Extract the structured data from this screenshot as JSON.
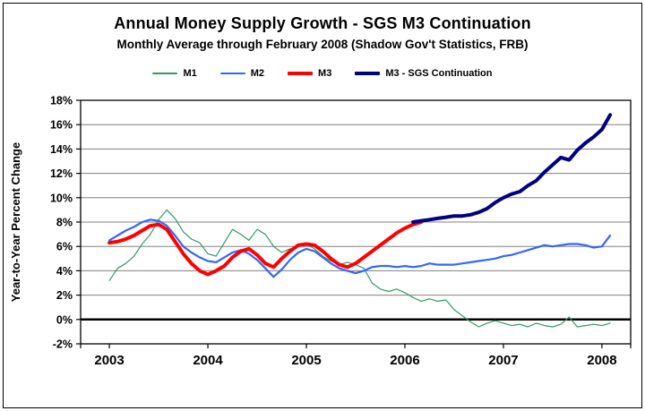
{
  "chart_data": {
    "type": "line",
    "title": "Annual Money Supply Growth - SGS M3 Continuation",
    "subtitle": "Monthly Average through February 2008 (Shadow Gov't Statistics, FRB)",
    "ylabel": "Year-to-Year Percent Change",
    "y_min": -2,
    "y_max": 18,
    "y_step": 2,
    "y_tick_suffix": "%",
    "y_tick_labels": [
      "18%",
      "16%",
      "14%",
      "12%",
      "10%",
      "8%",
      "6%",
      "4%",
      "2%",
      "0%",
      "-2%"
    ],
    "x_domain": [
      -3.5,
      63.5
    ],
    "x_ticks": [
      {
        "month": 0,
        "label": "2003"
      },
      {
        "month": 12,
        "label": "2004"
      },
      {
        "month": 24,
        "label": "2005"
      },
      {
        "month": 36,
        "label": "2006"
      },
      {
        "month": 48,
        "label": "2007"
      },
      {
        "month": 60,
        "label": "2008"
      }
    ],
    "x_unit": "months since Jan 2003, monthly data through Feb 2008",
    "grid": true,
    "grid_color": "#808080",
    "zero_line_color": "#000000",
    "plot_border_color": "#000000",
    "legend_position": "top",
    "series": [
      {
        "name": "M1",
        "color": "#339966",
        "stroke_width": 1.2,
        "start_month": 0,
        "values": [
          3.2,
          4.2,
          4.6,
          5.2,
          6.2,
          7.0,
          8.2,
          9.0,
          8.3,
          7.2,
          6.6,
          6.3,
          5.4,
          5.2,
          6.3,
          7.4,
          7.0,
          6.5,
          7.4,
          7.0,
          6.0,
          5.5,
          5.8,
          6.0,
          6.2,
          5.8,
          5.2,
          4.8,
          4.5,
          4.7,
          4.5,
          4.2,
          3.0,
          2.5,
          2.3,
          2.5,
          2.2,
          1.8,
          1.5,
          1.7,
          1.5,
          1.6,
          0.8,
          0.3,
          -0.2,
          -0.6,
          -0.3,
          -0.1,
          -0.3,
          -0.5,
          -0.4,
          -0.6,
          -0.3,
          -0.5,
          -0.6,
          -0.4,
          0.2,
          -0.6,
          -0.5,
          -0.4,
          -0.5,
          -0.3
        ]
      },
      {
        "name": "M2",
        "color": "#3366FF",
        "stroke_width": 2.2,
        "start_month": 0,
        "values": [
          6.5,
          6.9,
          7.3,
          7.6,
          8.0,
          8.2,
          8.1,
          7.7,
          6.9,
          6.0,
          5.5,
          5.1,
          4.8,
          4.7,
          5.1,
          5.5,
          5.7,
          5.4,
          4.9,
          4.2,
          3.5,
          4.1,
          4.9,
          5.5,
          5.8,
          5.6,
          5.1,
          4.6,
          4.2,
          4.0,
          3.8,
          4.0,
          4.3,
          4.4,
          4.4,
          4.3,
          4.4,
          4.3,
          4.4,
          4.6,
          4.5,
          4.5,
          4.5,
          4.6,
          4.7,
          4.8,
          4.9,
          5.0,
          5.2,
          5.3,
          5.5,
          5.7,
          5.9,
          6.1,
          6.0,
          6.1,
          6.2,
          6.2,
          6.1,
          5.9,
          6.0,
          6.9
        ]
      },
      {
        "name": "M3",
        "color": "#FF0000",
        "stroke_width": 4,
        "start_month": 0,
        "values": [
          6.3,
          6.4,
          6.6,
          6.9,
          7.3,
          7.7,
          7.8,
          7.4,
          6.4,
          5.4,
          4.6,
          4.0,
          3.7,
          4.0,
          4.4,
          5.1,
          5.6,
          5.8,
          5.3,
          4.6,
          4.3,
          5.0,
          5.6,
          6.1,
          6.2,
          6.1,
          5.6,
          5.0,
          4.5,
          4.3,
          4.6,
          5.1,
          5.6,
          6.1,
          6.6,
          7.1,
          7.5,
          7.8,
          8.0
        ]
      },
      {
        "name": "M3 - SGS Continuation",
        "color": "#000080",
        "stroke_width": 4,
        "start_month": 37,
        "values": [
          8.0,
          8.1,
          8.2,
          8.3,
          8.4,
          8.5,
          8.5,
          8.6,
          8.8,
          9.1,
          9.6,
          10.0,
          10.3,
          10.5,
          11.0,
          11.4,
          12.1,
          12.7,
          13.3,
          13.1,
          13.9,
          14.5,
          15.0,
          15.6,
          16.8
        ]
      }
    ]
  }
}
